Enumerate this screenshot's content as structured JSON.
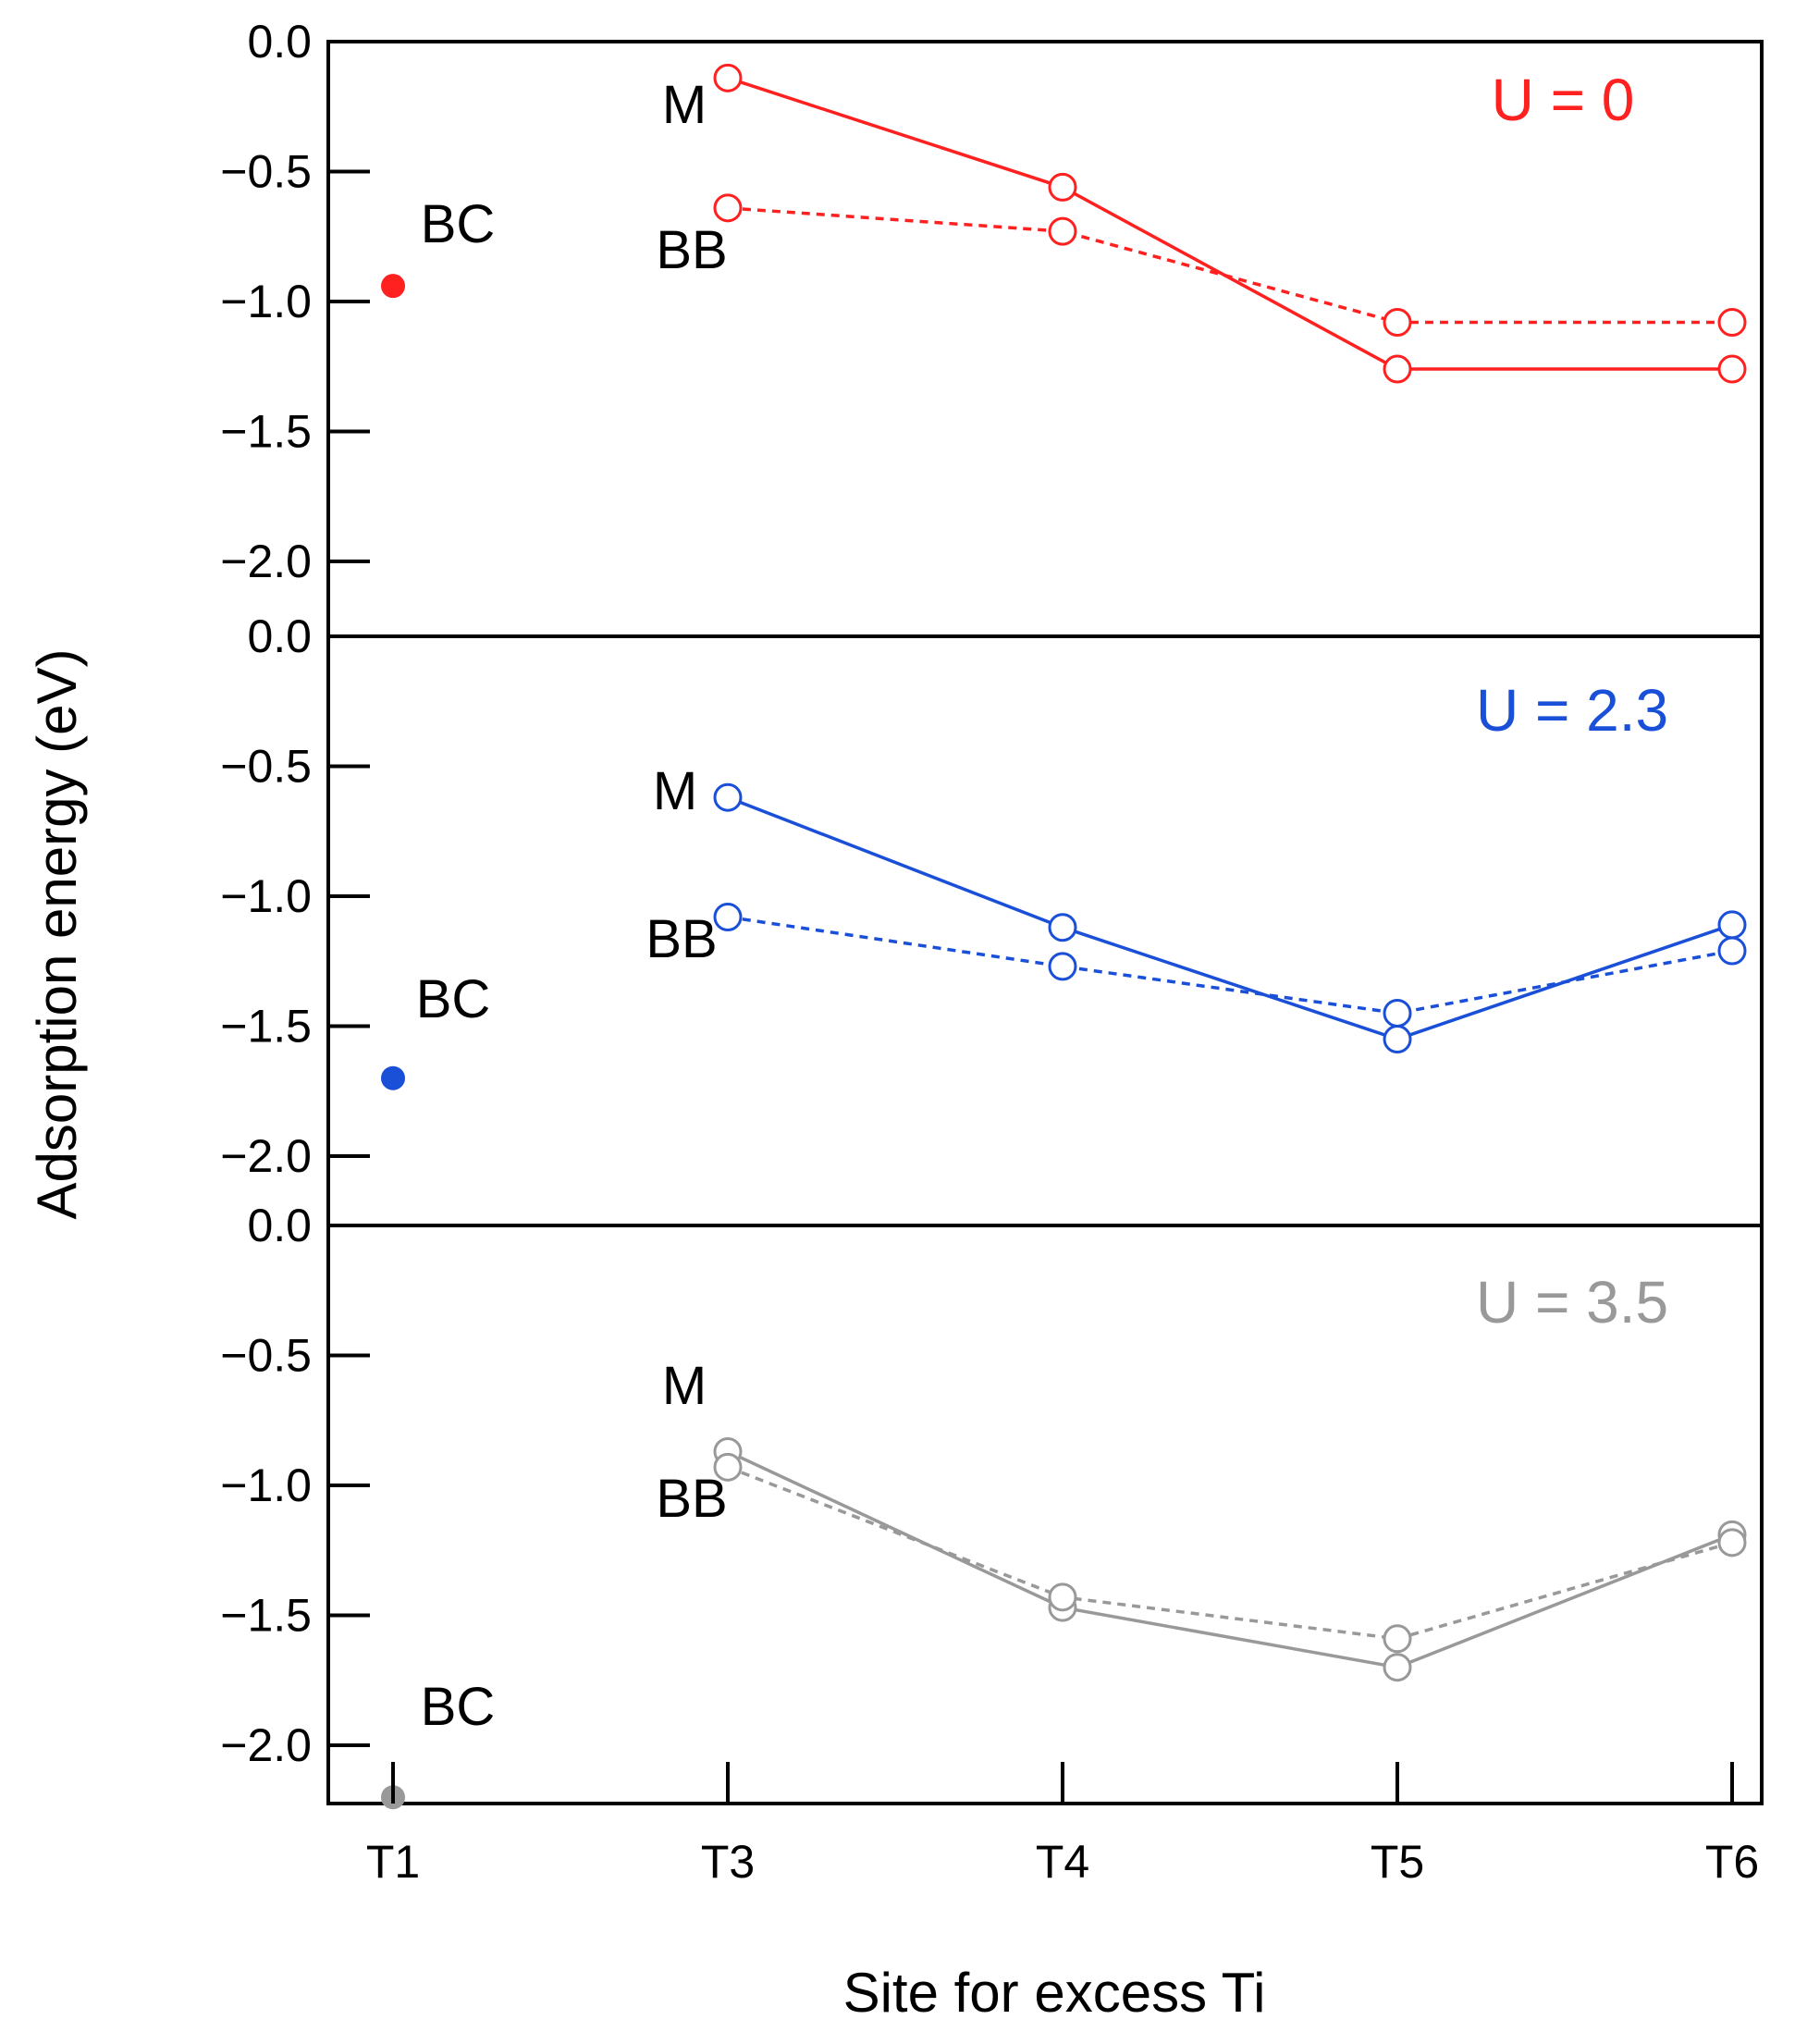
{
  "chart_data": {
    "type": "line",
    "ylabel": "Adsorption energy (eV)",
    "xlabel": "Site for excess Ti",
    "categories": [
      "T1",
      "T3",
      "T4",
      "T5",
      "T6"
    ],
    "panels": [
      {
        "label": "U = 0",
        "color": "#ff2020",
        "ylim": [
          -2.3,
          0.0
        ],
        "yticks": [
          0.0,
          -0.5,
          -1.0,
          -1.5,
          -2.0
        ],
        "ytick_labels": [
          "0.0",
          "−0.5",
          "−1.0",
          "−1.5",
          "−2.0"
        ],
        "bc": {
          "label": "BC",
          "x": "T1",
          "value": -0.94
        },
        "series": [
          {
            "name": "M",
            "style": "solid",
            "x": [
              "T3",
              "T4",
              "T5",
              "T6"
            ],
            "values": [
              -0.14,
              -0.56,
              -1.26,
              -1.26
            ]
          },
          {
            "name": "BB",
            "style": "dashed",
            "x": [
              "T3",
              "T4",
              "T5",
              "T6"
            ],
            "values": [
              -0.64,
              -0.73,
              -1.08,
              -1.08
            ]
          }
        ]
      },
      {
        "label": "U = 2.3",
        "color": "#1a4fd8",
        "ylim": [
          -2.3,
          0.0
        ],
        "yticks": [
          0.0,
          -0.5,
          -1.0,
          -1.5,
          -2.0
        ],
        "ytick_labels": [
          "0.0",
          "−0.5",
          "−1.0",
          "−1.5",
          "−2.0"
        ],
        "bc": {
          "label": "BC",
          "x": "T1",
          "value": -1.7
        },
        "series": [
          {
            "name": "M",
            "style": "solid",
            "x": [
              "T3",
              "T4",
              "T5",
              "T6"
            ],
            "values": [
              -0.62,
              -1.12,
              -1.55,
              -1.11
            ]
          },
          {
            "name": "BB",
            "style": "dashed",
            "x": [
              "T3",
              "T4",
              "T5",
              "T6"
            ],
            "values": [
              -1.08,
              -1.27,
              -1.45,
              -1.21
            ]
          }
        ]
      },
      {
        "label": "U = 3.5",
        "color": "#999999",
        "ylim": [
          -2.3,
          0.0
        ],
        "yticks": [
          0.0,
          -0.5,
          -1.0,
          -1.5,
          -2.0
        ],
        "ytick_labels": [
          "0.0",
          "−0.5",
          "−1.0",
          "−1.5",
          "−2.0"
        ],
        "bc": {
          "label": "BC",
          "x": "T1",
          "value": -2.2
        },
        "series": [
          {
            "name": "M",
            "style": "solid",
            "x": [
              "T3",
              "T4",
              "T5",
              "T6"
            ],
            "values": [
              -0.87,
              -1.47,
              -1.7,
              -1.19
            ]
          },
          {
            "name": "BB",
            "style": "dashed",
            "x": [
              "T3",
              "T4",
              "T5",
              "T6"
            ],
            "values": [
              -0.93,
              -1.43,
              -1.59,
              -1.22
            ]
          }
        ]
      }
    ]
  }
}
